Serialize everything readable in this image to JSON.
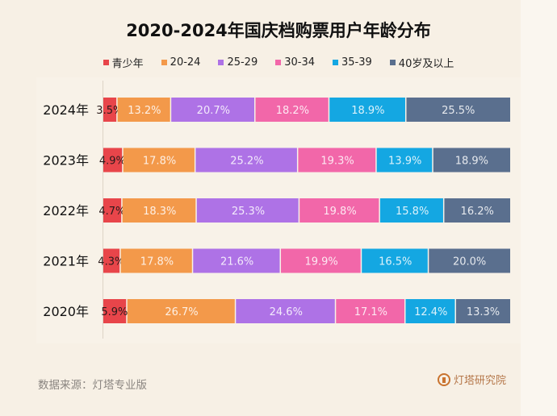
{
  "title": "2020-2024年国庆档购票用户年龄分布",
  "legend": [
    {
      "label": "青少年",
      "color": "#E8454A"
    },
    {
      "label": "20-24",
      "color": "#F3994A"
    },
    {
      "label": "25-29",
      "color": "#AE72E6"
    },
    {
      "label": "30-34",
      "color": "#F267A9"
    },
    {
      "label": "35-39",
      "color": "#14A7E2"
    },
    {
      "label": "40岁及以上",
      "color": "#5A6F8E"
    }
  ],
  "footer": {
    "source": "数据来源：灯塔专业版",
    "brand": "灯塔研究院"
  },
  "chart_data": {
    "type": "bar",
    "orientation": "horizontal",
    "stacked": true,
    "normalized": true,
    "title": "2020-2024年国庆档购票用户年龄分布",
    "xlabel": "",
    "ylabel": "",
    "xlim": [
      0,
      100
    ],
    "grid": false,
    "legend_position": "top",
    "categories": [
      "2024年",
      "2023年",
      "2022年",
      "2021年",
      "2020年"
    ],
    "series": [
      {
        "name": "青少年",
        "color": "#E8454A",
        "values": [
          3.5,
          4.9,
          4.7,
          4.3,
          5.9
        ],
        "labels": [
          "3.5%",
          "4.9%",
          "4.7%",
          "4.3%",
          "5.9%"
        ]
      },
      {
        "name": "20-24",
        "color": "#F3994A",
        "values": [
          13.2,
          17.8,
          18.3,
          17.8,
          26.7
        ],
        "labels": [
          "13.2%",
          "17.8%",
          "18.3%",
          "17.8%",
          "26.7%"
        ]
      },
      {
        "name": "25-29",
        "color": "#AE72E6",
        "values": [
          20.7,
          25.2,
          25.3,
          21.6,
          24.6
        ],
        "labels": [
          "20.7%",
          "25.2%",
          "25.3%",
          "21.6%",
          "24.6%"
        ]
      },
      {
        "name": "30-34",
        "color": "#F267A9",
        "values": [
          18.2,
          19.3,
          19.8,
          19.9,
          17.1
        ],
        "labels": [
          "18.2%",
          "19.3%",
          "19.8%",
          "19.9%",
          "17.1%"
        ]
      },
      {
        "name": "35-39",
        "color": "#14A7E2",
        "values": [
          18.9,
          13.9,
          15.8,
          16.5,
          12.4
        ],
        "labels": [
          "18.9%",
          "13.9%",
          "15.8%",
          "16.5%",
          "12.4%"
        ]
      },
      {
        "name": "40岁及以上",
        "color": "#5A6F8E",
        "values": [
          25.5,
          18.9,
          16.2,
          20.0,
          13.3
        ],
        "labels": [
          "25.5%",
          "18.9%",
          "16.2%",
          "20.0%",
          "13.3%"
        ]
      }
    ]
  }
}
